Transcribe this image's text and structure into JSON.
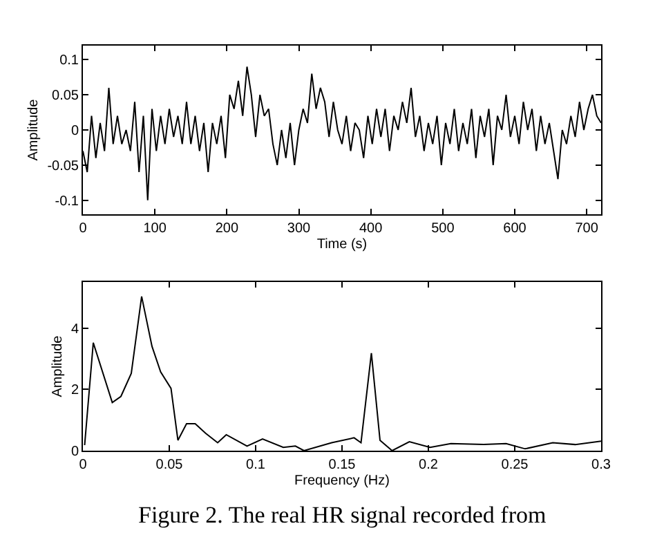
{
  "chart_data": [
    {
      "type": "line",
      "xlabel": "Time (s)",
      "ylabel": "Amplitude",
      "xlim": [
        0,
        720
      ],
      "ylim": [
        -0.12,
        0.12
      ],
      "xticks": [
        0,
        100,
        200,
        300,
        400,
        500,
        600,
        700
      ],
      "yticks": [
        -0.1,
        -0.05,
        0,
        0.05,
        0.1
      ],
      "marker": "none",
      "line_style": "solid",
      "x": [
        0,
        6,
        12,
        18,
        24,
        30,
        36,
        42,
        48,
        54,
        60,
        66,
        72,
        78,
        84,
        90,
        96,
        102,
        108,
        114,
        120,
        126,
        132,
        138,
        144,
        150,
        156,
        162,
        168,
        174,
        180,
        186,
        192,
        198,
        204,
        210,
        216,
        222,
        228,
        234,
        240,
        246,
        252,
        258,
        264,
        270,
        276,
        282,
        288,
        294,
        300,
        306,
        312,
        318,
        324,
        330,
        336,
        342,
        348,
        354,
        360,
        366,
        372,
        378,
        384,
        390,
        396,
        402,
        408,
        414,
        420,
        426,
        432,
        438,
        444,
        450,
        456,
        462,
        468,
        474,
        480,
        486,
        492,
        498,
        504,
        510,
        516,
        522,
        528,
        534,
        540,
        546,
        552,
        558,
        564,
        570,
        576,
        582,
        588,
        594,
        600,
        606,
        612,
        618,
        624,
        630,
        636,
        642,
        648,
        654,
        660,
        666,
        672,
        678,
        684,
        690,
        696,
        702,
        708,
        714,
        720
      ],
      "series": [
        {
          "color": "#000000",
          "values": [
            -0.03,
            -0.06,
            0.02,
            -0.04,
            0.01,
            -0.03,
            0.06,
            -0.02,
            0.02,
            -0.02,
            0.0,
            -0.03,
            0.04,
            -0.06,
            0.02,
            -0.1,
            0.03,
            -0.03,
            0.02,
            -0.02,
            0.03,
            -0.01,
            0.02,
            -0.02,
            0.04,
            -0.02,
            0.02,
            -0.03,
            0.01,
            -0.06,
            0.01,
            -0.02,
            0.02,
            -0.04,
            0.05,
            0.03,
            0.07,
            0.02,
            0.09,
            0.05,
            -0.01,
            0.05,
            0.02,
            0.03,
            -0.02,
            -0.05,
            0.0,
            -0.04,
            0.01,
            -0.05,
            0.0,
            0.03,
            0.01,
            0.08,
            0.03,
            0.06,
            0.04,
            -0.01,
            0.04,
            0.0,
            -0.02,
            0.02,
            -0.03,
            0.01,
            0.0,
            -0.04,
            0.02,
            -0.02,
            0.03,
            -0.01,
            0.03,
            -0.03,
            0.02,
            0.0,
            0.04,
            0.01,
            0.06,
            -0.01,
            0.02,
            -0.03,
            0.01,
            -0.02,
            0.02,
            -0.05,
            0.01,
            -0.02,
            0.03,
            -0.03,
            0.01,
            -0.02,
            0.03,
            -0.04,
            0.02,
            -0.01,
            0.03,
            -0.05,
            0.02,
            0.0,
            0.05,
            -0.01,
            0.02,
            -0.02,
            0.04,
            0.0,
            0.03,
            -0.03,
            0.02,
            -0.02,
            0.01,
            -0.03,
            -0.07,
            0.0,
            -0.02,
            0.02,
            -0.01,
            0.04,
            0.0,
            0.03,
            0.05,
            0.02,
            0.01
          ]
        }
      ]
    },
    {
      "type": "line",
      "xlabel": "Frequency (Hz)",
      "ylabel": "Amplitude",
      "xlim": [
        0,
        0.3
      ],
      "ylim": [
        0,
        5.5
      ],
      "xticks": [
        0,
        0.05,
        0.1,
        0.15,
        0.2,
        0.25,
        0.3
      ],
      "yticks": [
        0,
        2,
        4
      ],
      "marker": "none",
      "line_style": "solid",
      "x": [
        0.001,
        0.006,
        0.017,
        0.022,
        0.028,
        0.034,
        0.04,
        0.045,
        0.051,
        0.055,
        0.06,
        0.065,
        0.071,
        0.078,
        0.083,
        0.095,
        0.104,
        0.116,
        0.123,
        0.128,
        0.144,
        0.157,
        0.161,
        0.167,
        0.172,
        0.179,
        0.189,
        0.201,
        0.213,
        0.232,
        0.245,
        0.256,
        0.272,
        0.285,
        0.3
      ],
      "series": [
        {
          "color": "#000000",
          "values": [
            0.18,
            3.52,
            1.57,
            1.77,
            2.52,
            5.03,
            3.4,
            2.57,
            2.03,
            0.34,
            0.88,
            0.88,
            0.57,
            0.26,
            0.52,
            0.15,
            0.38,
            0.11,
            0.15,
            0.0,
            0.26,
            0.42,
            0.26,
            3.18,
            0.34,
            0.0,
            0.29,
            0.11,
            0.23,
            0.2,
            0.23,
            0.06,
            0.26,
            0.2,
            0.31
          ]
        }
      ],
      "annotations": [
        "Figure 2. The real HR signal recorded from"
      ]
    }
  ]
}
